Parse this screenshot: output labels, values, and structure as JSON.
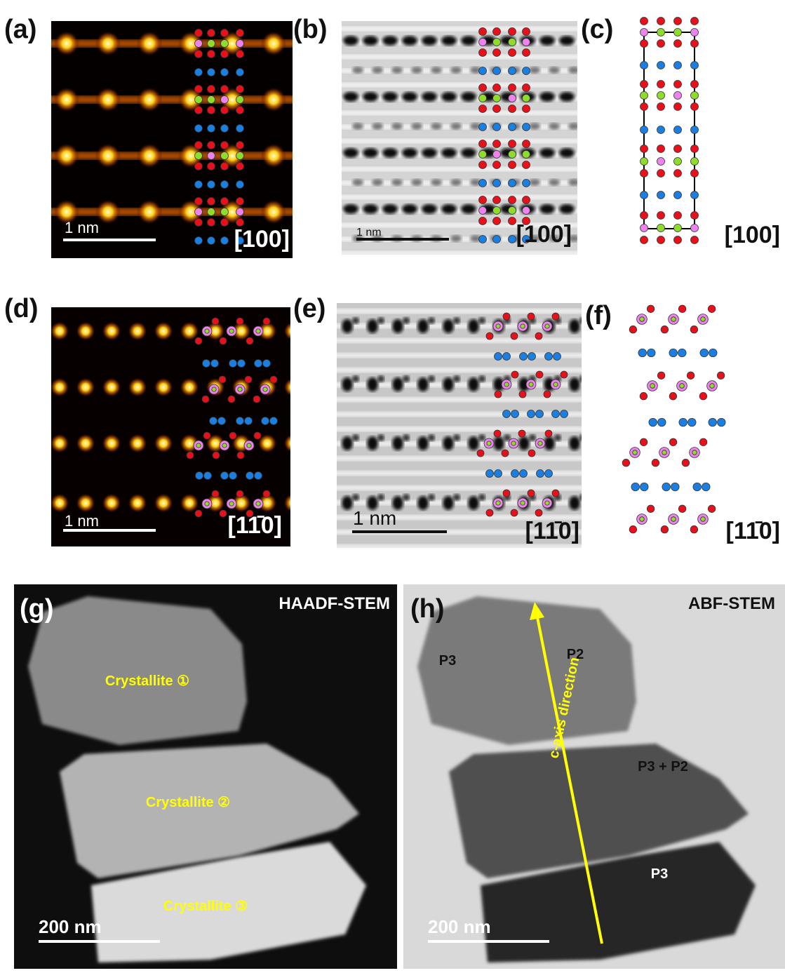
{
  "panels": [
    {
      "label": "(a)",
      "scale_bar": "1 nm",
      "zone_axis": "[100]"
    },
    {
      "label": "(b)",
      "scale_bar": "1 nm",
      "zone_axis": "[100]"
    },
    {
      "label": "(c)",
      "zone_axis": "[100]"
    },
    {
      "label": "(d)",
      "scale_bar": "1 nm",
      "zone_axis": "[11̄0]"
    },
    {
      "label": "(e)",
      "scale_bar": "1 nm",
      "zone_axis": "[11̄0]"
    },
    {
      "label": "(f)",
      "zone_axis": "[11̄0]"
    },
    {
      "label": "(g)",
      "mode": "HAADF-STEM",
      "scale_bar": "200 nm",
      "annotations": [
        "Crystallite ①",
        "Crystallite ②",
        "Crystallite ③"
      ]
    },
    {
      "label": "(h)",
      "mode": "ABF-STEM",
      "scale_bar": "200 nm",
      "annotations": [
        "P3",
        "P2",
        "P3 + P2",
        "P3",
        "c-axis direction"
      ]
    }
  ]
}
